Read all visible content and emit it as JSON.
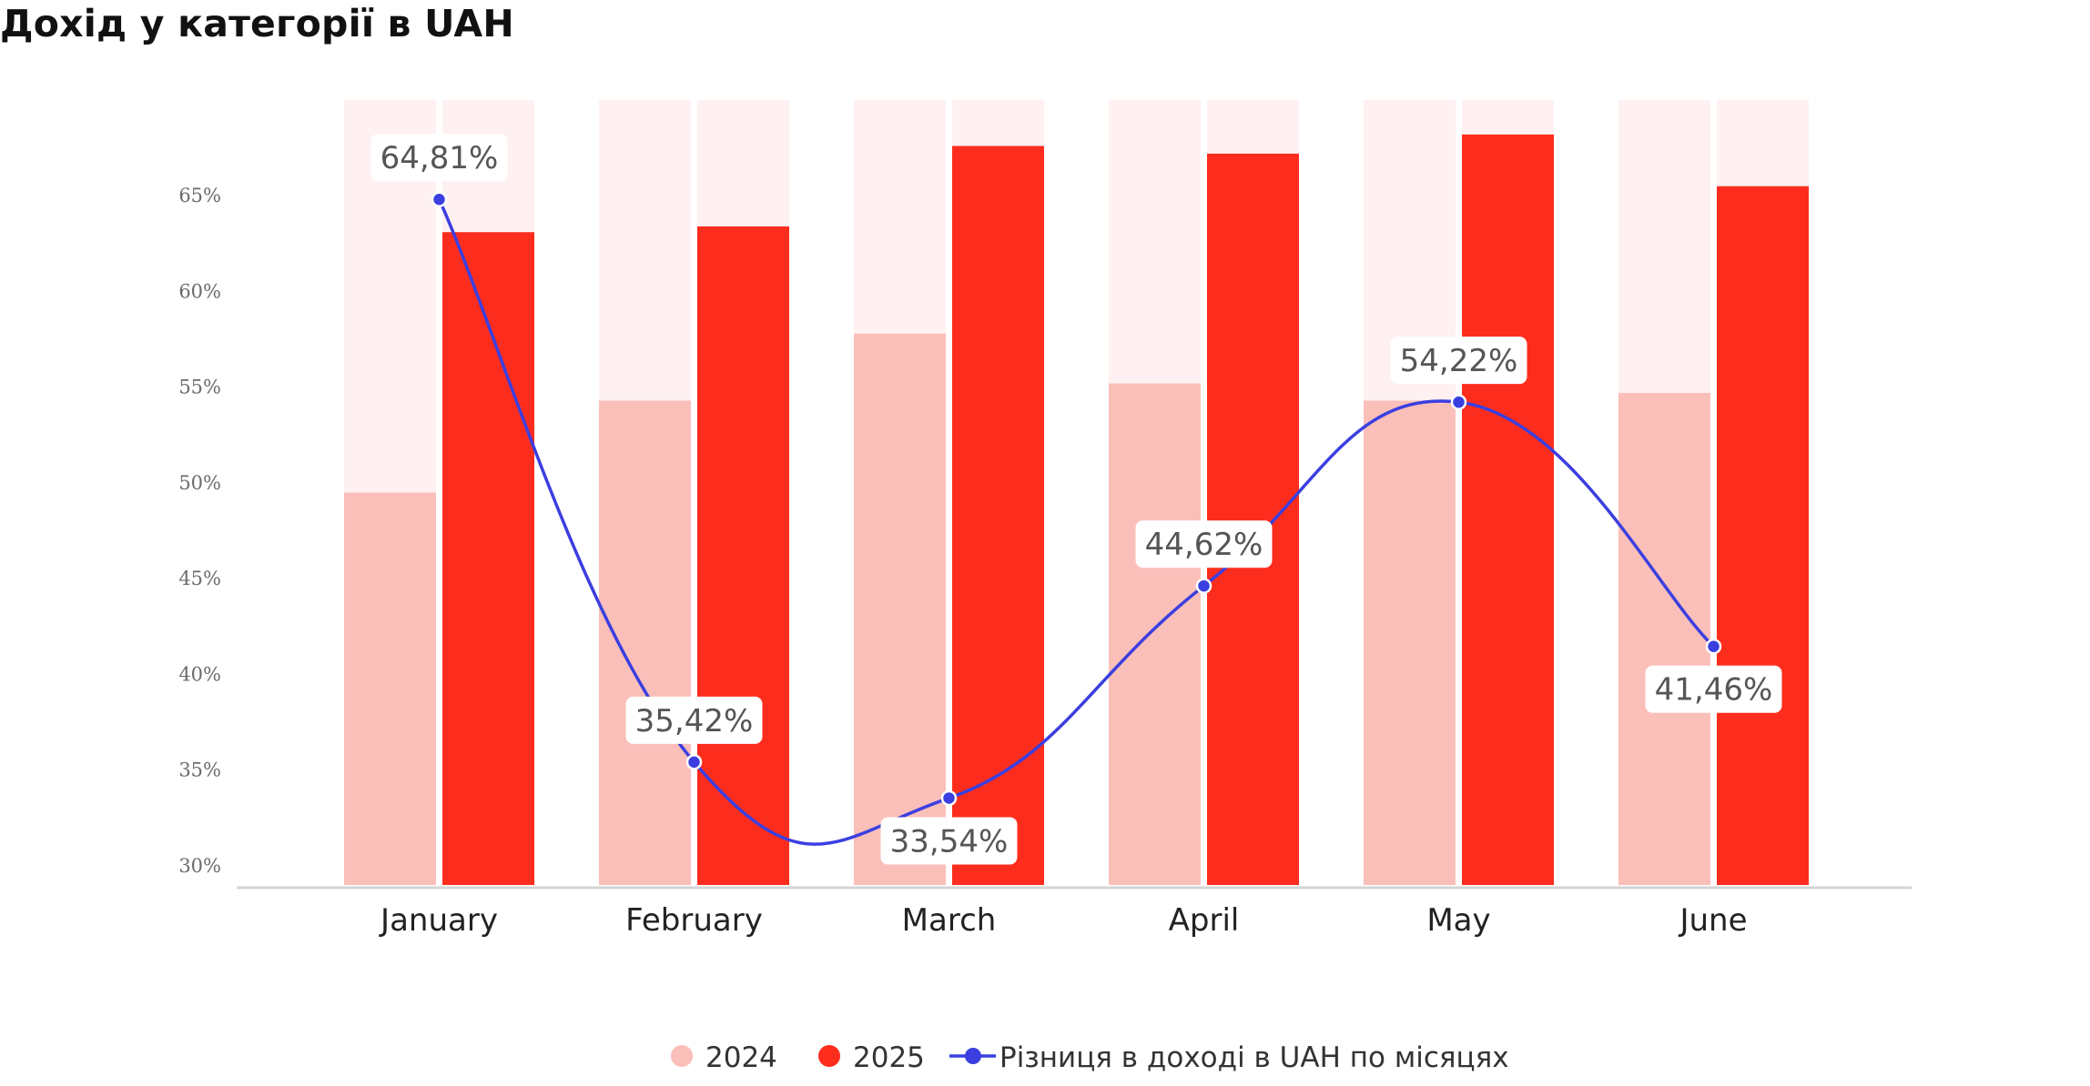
{
  "chart_data": {
    "type": "bar",
    "title": "Дохід у категорії в UAH",
    "categories": [
      "January",
      "February",
      "March",
      "April",
      "May",
      "June"
    ],
    "ylim": [
      29,
      70
    ],
    "yticks": [
      30,
      35,
      40,
      45,
      50,
      55,
      60,
      65
    ],
    "ytick_labels": [
      "30%",
      "35%",
      "40%",
      "45%",
      "50%",
      "55%",
      "60%",
      "65%"
    ],
    "series": [
      {
        "name": "2024",
        "kind": "bar",
        "values": [
          49.5,
          54.3,
          57.8,
          55.2,
          54.3,
          54.7
        ],
        "color": "#fbbfba"
      },
      {
        "name": "2025",
        "kind": "bar",
        "values": [
          63.1,
          63.4,
          67.6,
          67.2,
          68.2,
          65.5
        ],
        "color": "#fd2d1d"
      },
      {
        "name": "Різниця в доході в UAH по місяцях",
        "kind": "line",
        "values": [
          64.81,
          35.42,
          33.54,
          44.62,
          54.22,
          41.46
        ],
        "labels": [
          "64,81%",
          "35,42%",
          "33,54%",
          "44,62%",
          "54,22%",
          "41,46%"
        ],
        "color": "#3b3fe0"
      }
    ],
    "background_band_color": "#fff1f1",
    "grid": false,
    "legend_position": "bottom-center"
  }
}
